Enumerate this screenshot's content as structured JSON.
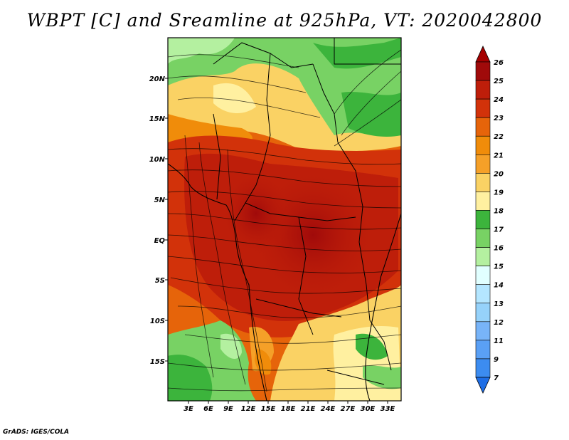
{
  "title": "WBPT [C] and Sreamline at 925hPa, VT: 2020042800",
  "footer": "GrADS: IGES/COLA",
  "map": {
    "lat_labels": [
      "20N",
      "15N",
      "10N",
      "5N",
      "EQ",
      "5S",
      "10S",
      "15S"
    ],
    "lon_labels": [
      "3E",
      "6E",
      "9E",
      "12E",
      "15E",
      "18E",
      "21E",
      "24E",
      "27E",
      "30E",
      "33E"
    ]
  },
  "colorbar": {
    "levels": [
      "7",
      "9",
      "11",
      "12",
      "13",
      "14",
      "15",
      "16",
      "17",
      "18",
      "19",
      "20",
      "21",
      "22",
      "23",
      "24",
      "25",
      "26"
    ],
    "colors": [
      "#1e6ee6",
      "#3c8cf0",
      "#5aa0f5",
      "#78b4f8",
      "#96d2fa",
      "#b4e6ff",
      "#e1ffff",
      "#b4f0a0",
      "#78d264",
      "#3cb43c",
      "#fff0a0",
      "#fad264",
      "#f5a028",
      "#f08c0a",
      "#e6640a",
      "#d2320a",
      "#be1e0a",
      "#a00a0a",
      "#a50000"
    ]
  }
}
